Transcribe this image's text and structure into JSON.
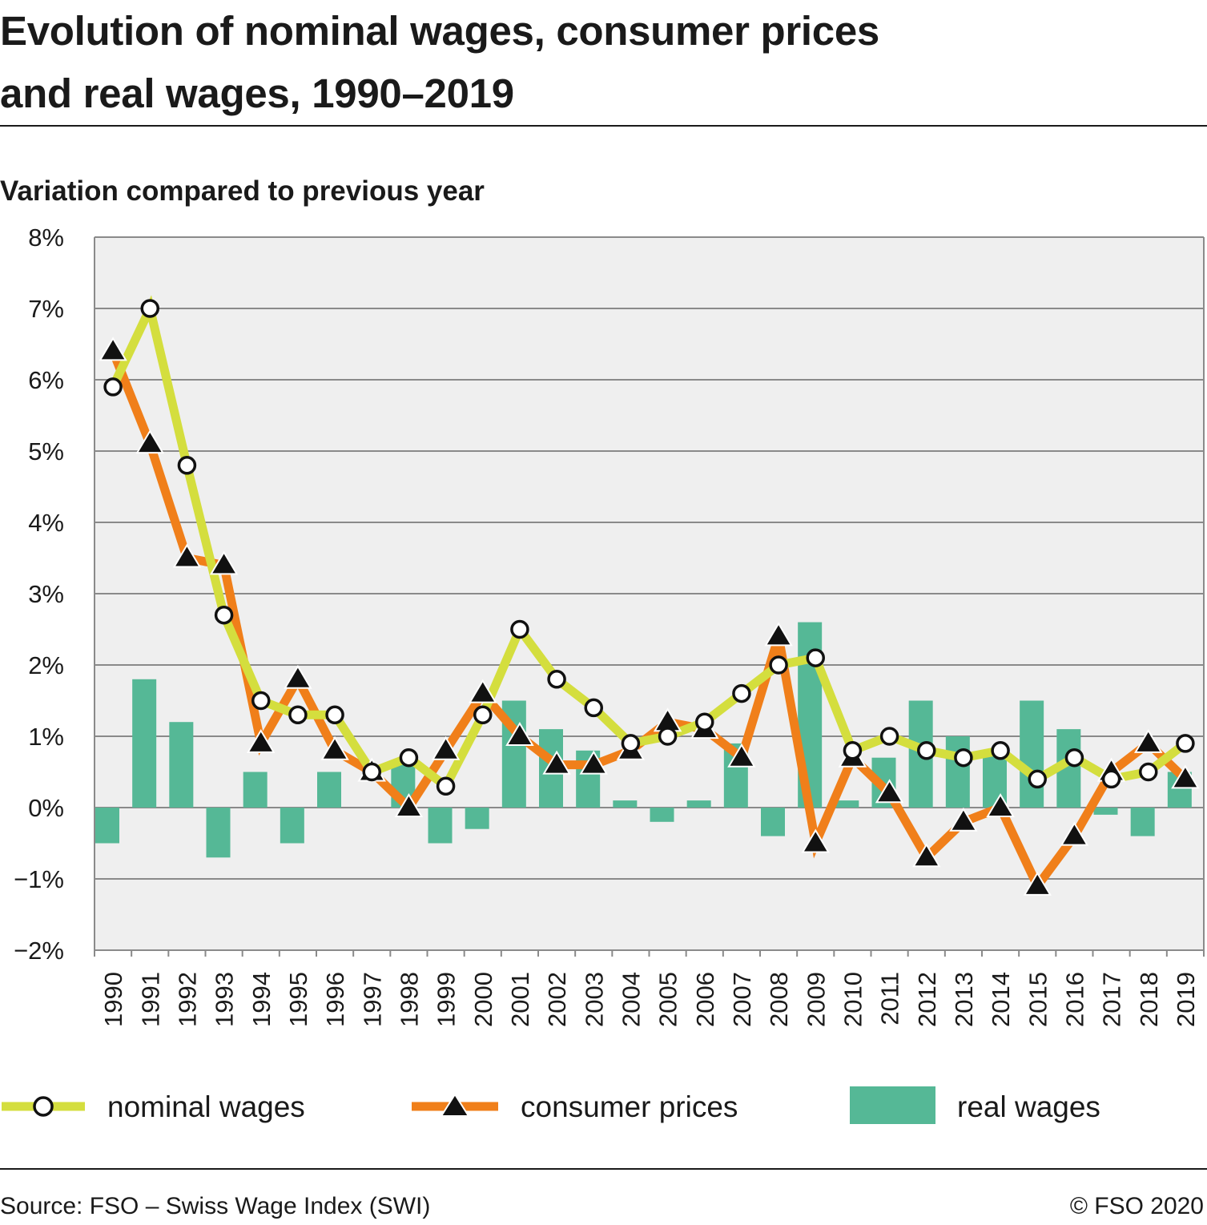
{
  "header": {
    "title_line1": "Evolution of nominal wages, consumer prices",
    "title_line2": "and real wages, 1990–2019",
    "subtitle": "Variation compared to previous year"
  },
  "legend": {
    "nominal": "nominal wages",
    "cpi": "consumer prices",
    "real": "real wages"
  },
  "footer": {
    "source": "Source: FSO – Swiss Wage Index (SWI)",
    "copyright": "© FSO 2020"
  },
  "colors": {
    "nominal": "#d4de3e",
    "cpi": "#f07f1a",
    "real": "#55b896",
    "plot_bg": "#efefef",
    "grid": "#8a8a8a"
  },
  "chart_data": {
    "type": "bar+line",
    "title": "Evolution of nominal wages, consumer prices and real wages, 1990–2019",
    "ylabel": "Variation compared to previous year",
    "xlabel": "",
    "ylim": [
      -2,
      8
    ],
    "y_ticks": [
      "8%",
      "7%",
      "6%",
      "5%",
      "4%",
      "3%",
      "2%",
      "1%",
      "0%",
      "−1%",
      "−2%"
    ],
    "grid": true,
    "legend_position": "bottom",
    "categories": [
      "1990",
      "1991",
      "1992",
      "1993",
      "1994",
      "1995",
      "1996",
      "1997",
      "1998",
      "1999",
      "2000",
      "2001",
      "2002",
      "2003",
      "2004",
      "2005",
      "2006",
      "2007",
      "2008",
      "2009",
      "2010",
      "2011",
      "2012",
      "2013",
      "2014",
      "2015",
      "2016",
      "2017",
      "2018",
      "2019"
    ],
    "series": [
      {
        "name": "nominal wages",
        "type": "line",
        "marker": "circle",
        "values": [
          5.9,
          7.0,
          4.8,
          2.7,
          1.5,
          1.3,
          1.3,
          0.5,
          0.7,
          0.3,
          1.3,
          2.5,
          1.8,
          1.4,
          0.9,
          1.0,
          1.2,
          1.6,
          2.0,
          2.1,
          0.8,
          1.0,
          0.8,
          0.7,
          0.8,
          0.4,
          0.7,
          0.4,
          0.5,
          0.9
        ]
      },
      {
        "name": "consumer prices",
        "type": "line",
        "marker": "triangle",
        "values": [
          6.4,
          5.1,
          3.5,
          3.4,
          0.9,
          1.8,
          0.8,
          0.5,
          0.0,
          0.8,
          1.6,
          1.0,
          0.6,
          0.6,
          0.8,
          1.2,
          1.1,
          0.7,
          2.4,
          -0.5,
          0.7,
          0.2,
          -0.7,
          -0.2,
          0.0,
          -1.1,
          -0.4,
          0.5,
          0.9,
          0.4
        ]
      },
      {
        "name": "real wages",
        "type": "bar",
        "values": [
          -0.5,
          1.8,
          1.2,
          -0.7,
          0.5,
          -0.5,
          0.5,
          0.0,
          0.6,
          -0.5,
          -0.3,
          1.5,
          1.1,
          0.8,
          0.1,
          -0.2,
          0.1,
          0.9,
          -0.4,
          2.6,
          0.1,
          0.7,
          1.5,
          1.0,
          0.8,
          1.5,
          1.1,
          -0.1,
          -0.4,
          0.5
        ]
      }
    ]
  }
}
